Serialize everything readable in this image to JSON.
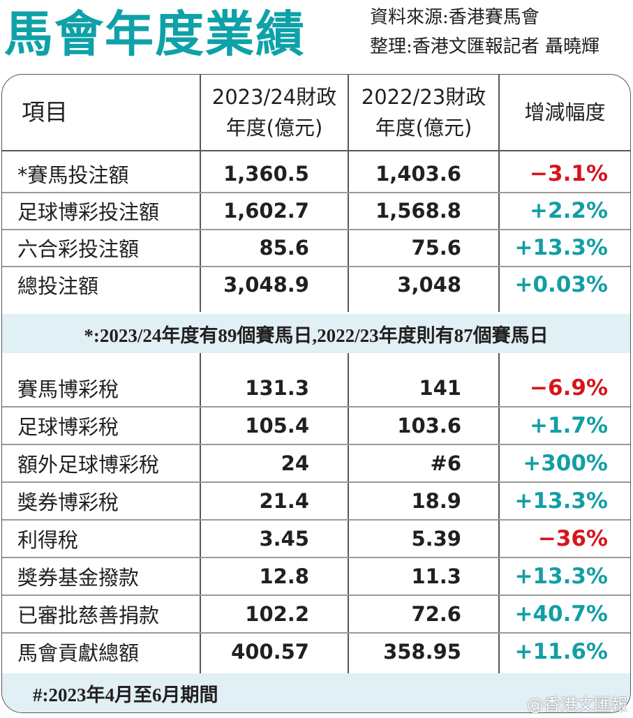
{
  "title": "馬會年度業績",
  "source": "資料來源:香港賽馬會",
  "compiled_by": "整理:香港文匯報記者 聶曉輝",
  "headers": [
    "項目",
    "2023/24財政年度(億元)",
    "2022/23財政年度(億元)",
    "增減幅度"
  ],
  "header_lines": {
    "c1a": "2023/24財政",
    "c1b": "年度(億元)",
    "c2a": "2022/23財政",
    "c2b": "年度(億元)"
  },
  "section1": [
    {
      "item": "*賽馬投注額",
      "y2324": "1,360.5",
      "y2223": "1,403.6",
      "change": "−3.1%",
      "dir": "neg"
    },
    {
      "item": "足球博彩投注額",
      "y2324": "1,602.7",
      "y2223": "1,568.8",
      "change": "+2.2%",
      "dir": "pos"
    },
    {
      "item": "六合彩投注額",
      "y2324": "85.6",
      "y2223": "75.6",
      "change": "+13.3%",
      "dir": "pos"
    },
    {
      "item": "總投注額",
      "y2324": "3,048.9",
      "y2223": "3,048",
      "change": "+0.03%",
      "dir": "pos"
    }
  ],
  "note1": "*:2023/24年度有89個賽馬日,2022/23年度則有87個賽馬日",
  "section2": [
    {
      "item": "賽馬博彩稅",
      "y2324": "131.3",
      "y2223": "141",
      "change": "−6.9%",
      "dir": "neg"
    },
    {
      "item": "足球博彩稅",
      "y2324": "105.4",
      "y2223": "103.6",
      "change": "+1.7%",
      "dir": "pos"
    },
    {
      "item": "額外足球博彩稅",
      "y2324": "24",
      "y2223": "#6",
      "change": "+300%",
      "dir": "pos"
    },
    {
      "item": "獎券博彩稅",
      "y2324": "21.4",
      "y2223": "18.9",
      "change": "+13.3%",
      "dir": "pos"
    },
    {
      "item": "利得稅",
      "y2324": "3.45",
      "y2223": "5.39",
      "change": "−36%",
      "dir": "neg"
    },
    {
      "item": "獎券基金撥款",
      "y2324": "12.8",
      "y2223": "11.3",
      "change": "+13.3%",
      "dir": "pos"
    },
    {
      "item": "已審批慈善捐款",
      "y2324": "102.2",
      "y2223": "72.6",
      "change": "+40.7%",
      "dir": "pos"
    },
    {
      "item": "馬會貢獻總額",
      "y2324": "400.57",
      "y2223": "358.95",
      "change": "+11.6%",
      "dir": "pos"
    }
  ],
  "note2": "#:2023年4月至6月期間",
  "watermark": "@香港文匯報",
  "colors": {
    "title": "#0ea1a8",
    "negative": "#d7141c",
    "positive": "#139ea5",
    "band": "#e0f0f4"
  }
}
